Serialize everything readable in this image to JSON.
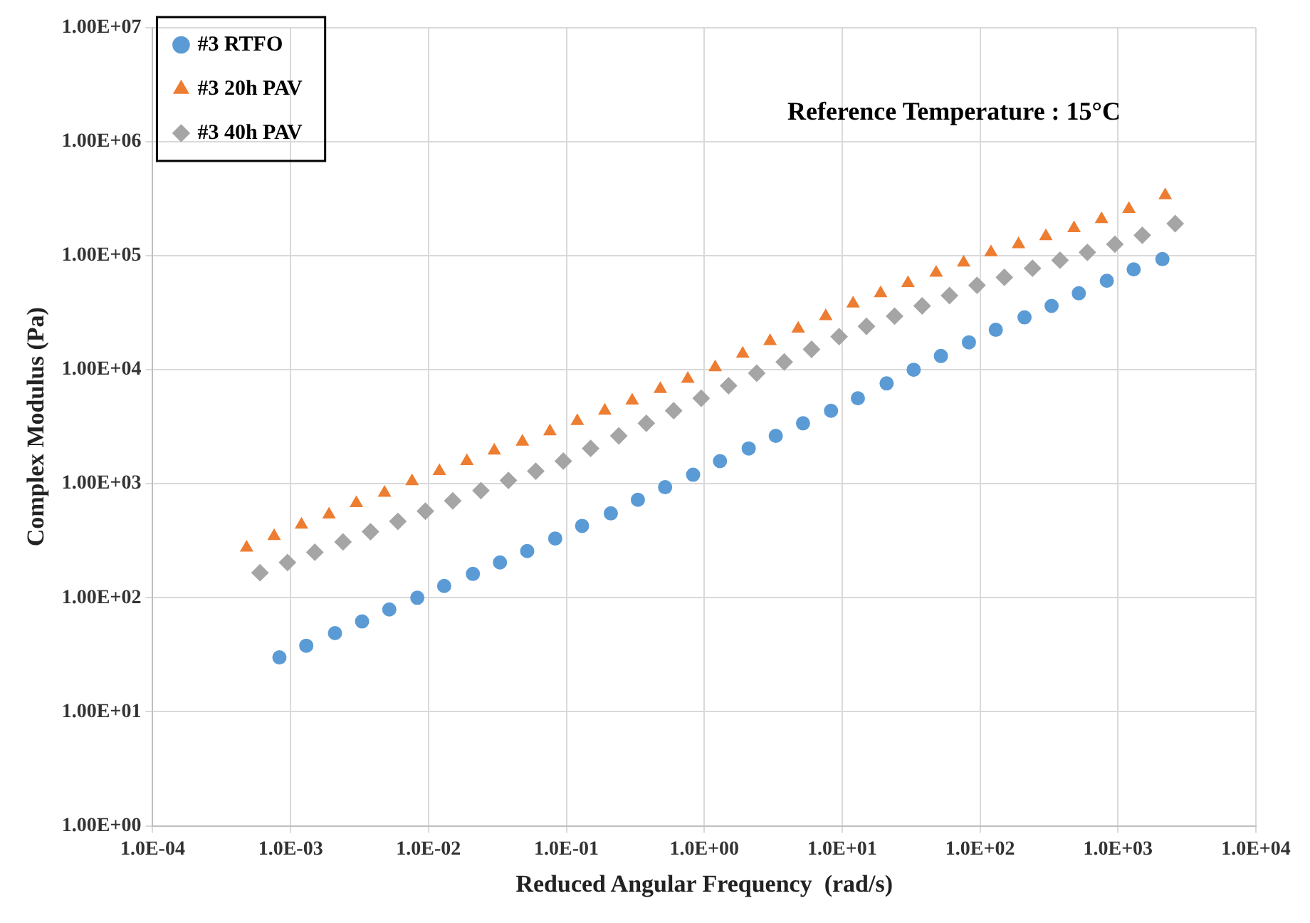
{
  "chart_data": {
    "type": "scatter",
    "xlabel": "Reduced Angular Frequency  (rad/s)",
    "ylabel": "Complex Modulus (Pa)",
    "annotations": [
      "Reference Temperature : 15°C"
    ],
    "log": "xy",
    "grid": true,
    "legend": "top left",
    "xlim": [
      0.0001,
      10000
    ],
    "xticks": [
      {
        "value": 0.0001,
        "label": "1.0E-04"
      },
      {
        "value": 0.001,
        "label": "1.0E-03"
      },
      {
        "value": 0.01,
        "label": "1.0E-02"
      },
      {
        "value": 0.1,
        "label": "1.0E-01"
      },
      {
        "value": 1,
        "label": "1.0E+00"
      },
      {
        "value": 10,
        "label": "1.0E+01"
      },
      {
        "value": 100,
        "label": "1.0E+02"
      },
      {
        "value": 1000,
        "label": "1.0E+03"
      },
      {
        "value": 10000,
        "label": "1.0E+04"
      }
    ],
    "ylim": [
      1,
      10000000
    ],
    "yticks": [
      {
        "value": 1,
        "label": "1.00E+00"
      },
      {
        "value": 10,
        "label": "1.00E+01"
      },
      {
        "value": 100,
        "label": "1.00E+02"
      },
      {
        "value": 1000,
        "label": "1.00E+03"
      },
      {
        "value": 10000,
        "label": "1.00E+04"
      },
      {
        "value": 100000,
        "label": "1.00E+05"
      },
      {
        "value": 1000000,
        "label": "1.00E+06"
      },
      {
        "value": 10000000,
        "label": "1.00E+07"
      }
    ],
    "series": [
      {
        "name": "#3 RTFO",
        "color": "#5b9bd5",
        "marker": "circle",
        "x": [
          0.00083,
          0.0013,
          0.0021,
          0.0033,
          0.0052,
          0.0083,
          0.013,
          0.021,
          0.033,
          0.052,
          0.083,
          0.13,
          0.21,
          0.33,
          0.52,
          0.83,
          1.3,
          2.1,
          3.3,
          5.2,
          8.3,
          13,
          21,
          33,
          52,
          83,
          130,
          210,
          330,
          520,
          830,
          1300,
          2100
        ],
        "values": [
          30,
          38,
          49,
          62,
          79,
          100,
          127,
          162,
          204,
          257,
          331,
          427,
          550,
          724,
          933,
          1200,
          1580,
          2040,
          2630,
          3390,
          4370,
          5620,
          7590,
          10000,
          13200,
          17400,
          22400,
          28800,
          36300,
          46800,
          60300,
          75900,
          93300
        ]
      },
      {
        "name": "#3 20h PAV",
        "color": "#ed7d31",
        "marker": "triangle",
        "x": [
          0.00048,
          0.00076,
          0.0012,
          0.0019,
          0.003,
          0.0048,
          0.0076,
          0.012,
          0.019,
          0.03,
          0.048,
          0.076,
          0.12,
          0.19,
          0.3,
          0.48,
          0.76,
          1.2,
          1.9,
          3,
          4.8,
          7.6,
          12,
          19,
          30,
          48,
          76,
          120,
          190,
          300,
          480,
          760,
          1200,
          2200
        ],
        "values": [
          275,
          347,
          437,
          537,
          676,
          832,
          1050,
          1290,
          1580,
          1950,
          2340,
          2880,
          3550,
          4370,
          5370,
          6760,
          8320,
          10500,
          13800,
          17800,
          22900,
          29500,
          38000,
          46800,
          57500,
          70800,
          87100,
          107000,
          126000,
          148000,
          174000,
          209000,
          257000,
          339000
        ]
      },
      {
        "name": "#3 40h PAV",
        "color": "#a5a5a5",
        "marker": "diamond",
        "x": [
          0.0006,
          0.00095,
          0.0015,
          0.0024,
          0.0038,
          0.006,
          0.0095,
          0.015,
          0.024,
          0.038,
          0.06,
          0.095,
          0.15,
          0.24,
          0.38,
          0.6,
          0.95,
          1.5,
          2.4,
          3.8,
          6,
          9.5,
          15,
          24,
          38,
          60,
          95,
          150,
          240,
          380,
          600,
          950,
          1500,
          2600
        ],
        "values": [
          166,
          204,
          251,
          309,
          380,
          468,
          575,
          708,
          871,
          1070,
          1290,
          1580,
          2040,
          2630,
          3390,
          4370,
          5620,
          7240,
          9330,
          11700,
          15100,
          19500,
          24000,
          29500,
          36300,
          44700,
          55000,
          64600,
          77600,
          91200,
          107000,
          126000,
          151000,
          191000
        ]
      }
    ]
  }
}
